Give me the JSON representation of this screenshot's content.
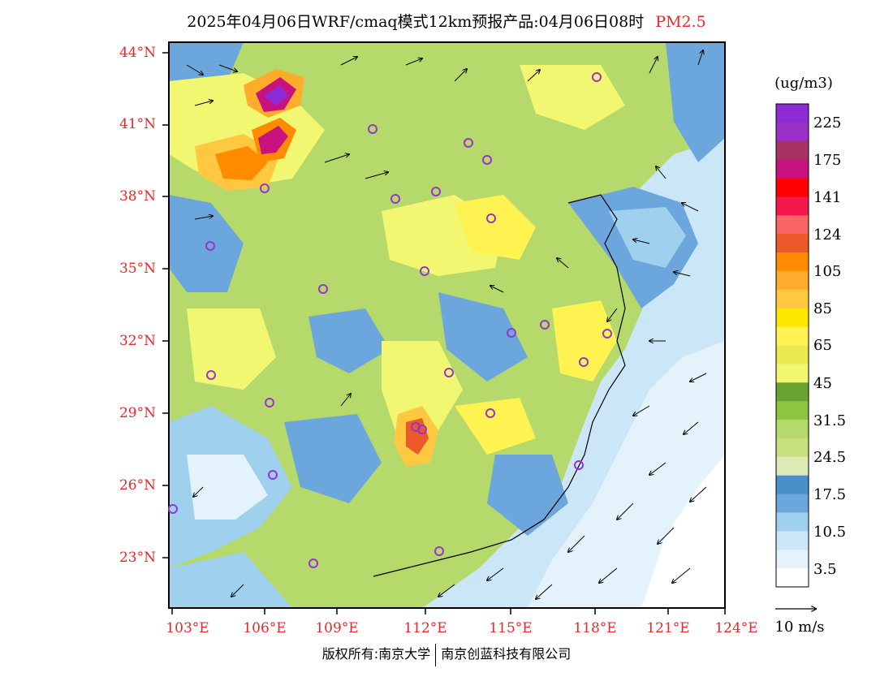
{
  "title": {
    "main": "2025年04月06日WRF/cmaq模式12km预报产品:04月06日08时",
    "pollutant": "PM2.5",
    "pollutant_color": "#e8282a"
  },
  "map": {
    "lat_labels": [
      "44°N",
      "41°N",
      "38°N",
      "35°N",
      "32°N",
      "29°N",
      "26°N",
      "23°N"
    ],
    "lon_labels": [
      "103°E",
      "106°E",
      "109°E",
      "112°E",
      "115°E",
      "118°E",
      "121°E",
      "124°E"
    ],
    "label_color": "#e8282a",
    "station_marker_color": "#9933cc",
    "station_count": 26
  },
  "colorbar": {
    "unit": "(ug/m3)",
    "colors": [
      "#8d2bd6",
      "#9b30c8",
      "#a83362",
      "#c8137e",
      "#ff0000",
      "#f5184a",
      "#fa6464",
      "#eb5a28",
      "#ff8c00",
      "#ffab2b",
      "#ffc840",
      "#ffe600",
      "#fff352",
      "#e8ea50",
      "#f2f771",
      "#6aa332",
      "#8cc63f",
      "#b5d96a",
      "#c9e17c",
      "#dde9b7",
      "#4a8fc9",
      "#6ba7dc",
      "#9fd1ee",
      "#cbe7f7",
      "#e3f2fb",
      "#ffffff"
    ],
    "labels": [
      "225",
      "175",
      "141",
      "124",
      "105",
      "85",
      "65",
      "45",
      "31.5",
      "24.5",
      "17.5",
      "10.5",
      "3.5"
    ]
  },
  "wind": {
    "reference_label": "10 m/s"
  },
  "footer": {
    "left": "版权所有:南京大学",
    "right": "南京创蓝科技有限公司"
  }
}
